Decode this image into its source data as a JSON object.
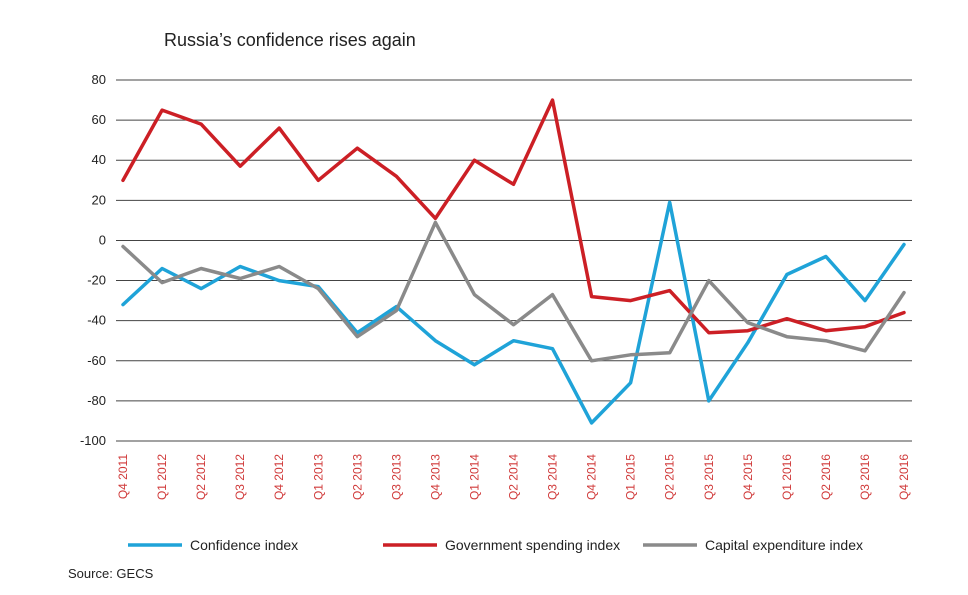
{
  "chart_data": {
    "type": "line",
    "title": "Russia’s confidence rises again",
    "source": "Source: GECS",
    "xlabel": "",
    "ylabel": "",
    "ylim": [
      -100,
      80
    ],
    "yticks": [
      "80",
      "60",
      "40",
      "20",
      "0",
      "-20",
      "-40",
      "-60",
      "-80",
      "-100"
    ],
    "ytick_values": [
      80,
      60,
      40,
      20,
      0,
      -20,
      -40,
      -60,
      -80,
      -100
    ],
    "grid": true,
    "legend_position": "bottom",
    "categories": [
      "Q4 2011",
      "Q1 2012",
      "Q2 2012",
      "Q3 2012",
      "Q4 2012",
      "Q1 2013",
      "Q2 2013",
      "Q3 2013",
      "Q4 2013",
      "Q1 2014",
      "Q2 2014",
      "Q3 2014",
      "Q4 2014",
      "Q1 2015",
      "Q2 2015",
      "Q3 2015",
      "Q4 2015",
      "Q1 2016",
      "Q2 2016",
      "Q3 2016",
      "Q4 2016"
    ],
    "series": [
      {
        "name": "Confidence index",
        "color": "#1fa3d8",
        "values": [
          -32,
          -14,
          -24,
          -13,
          -20,
          -23,
          -46,
          -33,
          -50,
          -62,
          -50,
          -54,
          -91,
          -71,
          19,
          -80,
          -51,
          -17,
          -8,
          -30,
          -2
        ]
      },
      {
        "name": "Government spending index",
        "color": "#cc1f25",
        "values": [
          30,
          65,
          58,
          37,
          56,
          30,
          46,
          32,
          11,
          40,
          28,
          70,
          -28,
          -30,
          -25,
          -46,
          -45,
          -39,
          -45,
          -43,
          -36
        ]
      },
      {
        "name": "Capital expenditure index",
        "color": "#8a8a8a",
        "values": [
          -3,
          -21,
          -14,
          -19,
          -13,
          -24,
          -48,
          -35,
          9,
          -27,
          -42,
          -27,
          -60,
          -57,
          -56,
          -20,
          -41,
          -48,
          -50,
          -55,
          -26
        ]
      }
    ]
  }
}
